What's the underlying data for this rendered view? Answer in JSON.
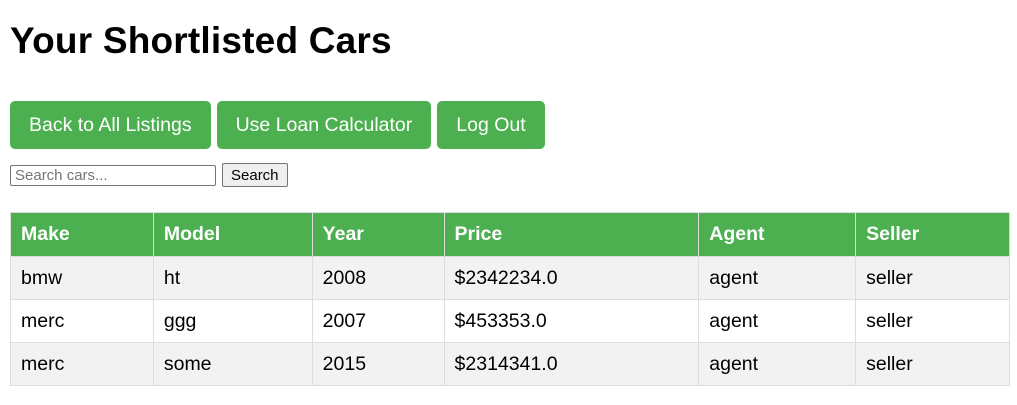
{
  "page": {
    "title": "Your Shortlisted Cars"
  },
  "nav": {
    "back_label": "Back to All Listings",
    "loan_label": "Use Loan Calculator",
    "logout_label": "Log Out"
  },
  "search": {
    "placeholder": "Search cars...",
    "value": "",
    "button_label": "Search"
  },
  "table": {
    "headers": [
      "Make",
      "Model",
      "Year",
      "Price",
      "Agent",
      "Seller"
    ],
    "rows": [
      [
        "bmw",
        "ht",
        "2008",
        "$2342234.0",
        "agent",
        "seller"
      ],
      [
        "merc",
        "ggg",
        "2007",
        "$453353.0",
        "agent",
        "seller"
      ],
      [
        "merc",
        "some",
        "2015",
        "$2314341.0",
        "agent",
        "seller"
      ]
    ]
  },
  "colors": {
    "accent": "#4caf50",
    "row_stripe": "#f2f2f2",
    "border": "#dddddd"
  }
}
